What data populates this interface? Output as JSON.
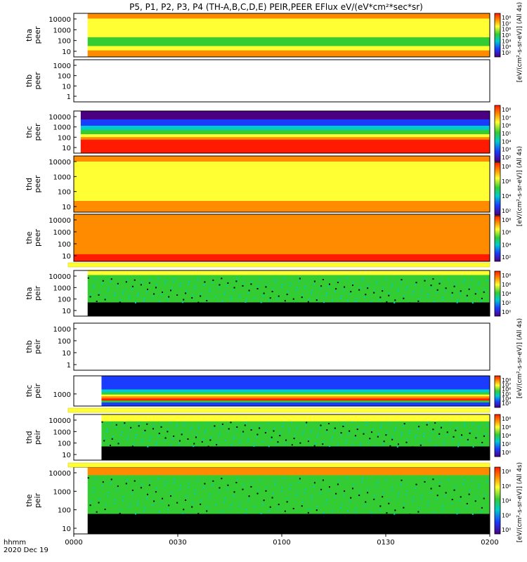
{
  "title": "P5, P1, P2, P3, P4 (TH-A,B,C,D,E) PEIR,PEER EFlux eV/(eV*cm²*sec*sr)",
  "time_axis": {
    "label_line1": "hhmm",
    "label_line2": "2020 Dec 19",
    "ticks": [
      "0000",
      "0030",
      "0100",
      "0130",
      "0200"
    ],
    "start": "0000",
    "end": "0200"
  },
  "colorbar_labels": {
    "cb1": "[eV/(cm²-s-sr-eV)] (All 4s)",
    "cb2": "[eV/(cm²-s-sr-eV)] (All 4s)",
    "cb3": "[eV/(cm²-s-sr-eV)] (All 4s)",
    "cb4": "[eV/(cm²-s-sr-eV)] (All 4s)"
  },
  "colors": {
    "dark_red": "#8b0000",
    "red": "#ff1a00",
    "orange": "#ff8c00",
    "yellow": "#ffff33",
    "green": "#33cc33",
    "cyan": "#00cccc",
    "blue": "#1a3cff",
    "purple": "#4b0082",
    "black": "#000000"
  },
  "chart_data": [
    {
      "type": "heatmap",
      "probe": "tha",
      "product": "peer",
      "ylabel1": "tha",
      "ylabel2": "peer",
      "yticks": [
        "10000",
        "1000",
        "100",
        "10"
      ],
      "ylog": true,
      "yrange_eV": [
        5,
        25000
      ],
      "data_start": "0004",
      "colorbar": {
        "ticks": [
          "10⁸",
          "10⁷",
          "10⁶",
          "10⁵",
          "10⁴",
          "10³",
          "10²"
        ]
      },
      "bands": [
        [
          "orange",
          0,
          0.12
        ],
        [
          "yellow",
          0.12,
          0.3
        ],
        [
          "yellow",
          0.3,
          0.55
        ],
        [
          "green",
          0.55,
          0.75
        ],
        [
          "yellow",
          0.75,
          0.85
        ],
        [
          "orange",
          0.85,
          1.0
        ]
      ]
    },
    {
      "type": "heatmap",
      "probe": "thb",
      "product": "peer",
      "ylabel1": "thb",
      "ylabel2": "peer",
      "yticks": [
        "1000",
        "100",
        "10",
        "1"
      ],
      "ylog": true,
      "yrange_eV": [
        0.5,
        2000
      ],
      "data_start": null,
      "colorbar": null,
      "bands": []
    },
    {
      "type": "heatmap",
      "probe": "thc",
      "product": "peer",
      "ylabel1": "thc",
      "ylabel2": "peer",
      "yticks": [
        "10000",
        "1000",
        "100",
        "10"
      ],
      "ylog": true,
      "yrange_eV": [
        5,
        25000
      ],
      "data_start": "0002",
      "colorbar": {
        "ticks": [
          "10⁸",
          "10⁷",
          "10⁶",
          "10⁵",
          "10⁴",
          "10³",
          "10²"
        ]
      },
      "bands": [
        [
          "purple",
          0,
          0.2
        ],
        [
          "blue",
          0.2,
          0.35
        ],
        [
          "cyan",
          0.35,
          0.45
        ],
        [
          "green",
          0.45,
          0.55
        ],
        [
          "yellow",
          0.55,
          0.62
        ],
        [
          "orange",
          0.62,
          0.68
        ],
        [
          "red",
          0.68,
          1.0
        ]
      ]
    },
    {
      "type": "heatmap",
      "probe": "thd",
      "product": "peer",
      "ylabel1": "thd",
      "ylabel2": "peer",
      "yticks": [
        "10000",
        "1000",
        "100",
        "10"
      ],
      "ylog": true,
      "yrange_eV": [
        5,
        25000
      ],
      "data_start": "0000",
      "colorbar": {
        "ticks": [
          "10⁸",
          "10⁶",
          "10⁴",
          "10²"
        ]
      },
      "bands": [
        [
          "orange",
          0,
          0.1
        ],
        [
          "yellow",
          0.1,
          0.4
        ],
        [
          "yellow",
          0.4,
          0.8
        ],
        [
          "orange",
          0.8,
          1.0
        ]
      ]
    },
    {
      "type": "heatmap",
      "probe": "the",
      "product": "peer",
      "ylabel1": "the",
      "ylabel2": "peer",
      "yticks": [
        "10000",
        "1000",
        "100",
        "10"
      ],
      "ylog": true,
      "yrange_eV": [
        5,
        25000
      ],
      "data_start": "0000",
      "colorbar": {
        "ticks": [
          "10⁸",
          "10⁶",
          "10⁴",
          "10²"
        ]
      },
      "bands": [
        [
          "orange",
          0,
          0.55
        ],
        [
          "orange",
          0.55,
          0.85
        ],
        [
          "red",
          0.85,
          1.0
        ]
      ]
    },
    {
      "type": "heatmap",
      "probe": "tha",
      "product": "peir",
      "ylabel1": "tha",
      "ylabel2": "peir",
      "yticks": [
        "10000",
        "1000",
        "100",
        "10"
      ],
      "ylog": true,
      "yrange_eV": [
        5,
        25000
      ],
      "data_start": "0004",
      "colorbar": {
        "ticks": [
          "10⁸",
          "10⁶",
          "10⁴",
          "10²",
          "10⁰"
        ]
      },
      "bands": [
        [
          "yellow",
          0,
          0.1
        ],
        [
          "green",
          0.1,
          0.7
        ],
        [
          "black",
          0.7,
          1.0
        ]
      ]
    },
    {
      "type": "heatmap",
      "probe": "thb",
      "product": "peir",
      "ylabel1": "thb",
      "ylabel2": "peir",
      "yticks": [
        "1000",
        "100",
        "10",
        "1"
      ],
      "ylog": true,
      "yrange_eV": [
        0.5,
        2000
      ],
      "data_start": null,
      "colorbar": null,
      "bands": []
    },
    {
      "type": "heatmap",
      "probe": "thc",
      "product": "peir",
      "ylabel1": "thc",
      "ylabel2": "peir",
      "yticks": [
        "1000"
      ],
      "ylog": true,
      "yrange_eV": [
        200,
        30000
      ],
      "data_start": "0008",
      "colorbar": {
        "ticks": [
          "10⁸",
          "10⁷",
          "10⁶",
          "10⁵",
          "10⁴",
          "10³"
        ]
      },
      "bands": [
        [
          "blue",
          0,
          0.45
        ],
        [
          "cyan",
          0.45,
          0.55
        ],
        [
          "green",
          0.55,
          0.62
        ],
        [
          "yellow",
          0.62,
          0.68
        ],
        [
          "orange",
          0.68,
          0.75
        ],
        [
          "red",
          0.75,
          0.82
        ],
        [
          "green",
          0.82,
          0.88
        ],
        [
          "blue",
          0.88,
          1.0
        ]
      ]
    },
    {
      "type": "heatmap",
      "probe": "thd",
      "product": "peir",
      "ylabel1": "thd",
      "ylabel2": "peir",
      "yticks": [
        "10000",
        "1000",
        "100",
        "10"
      ],
      "ylog": true,
      "yrange_eV": [
        5,
        25000
      ],
      "data_start": "0008",
      "colorbar": {
        "ticks": [
          "10⁸",
          "10⁶",
          "10⁴",
          "10²",
          "10⁰"
        ]
      },
      "bands": [
        [
          "yellow",
          0,
          0.15
        ],
        [
          "green",
          0.15,
          0.7
        ],
        [
          "black",
          0.7,
          1.0
        ]
      ]
    },
    {
      "type": "heatmap",
      "probe": "the",
      "product": "peir",
      "ylabel1": "the",
      "ylabel2": "peir",
      "yticks": [
        "10000",
        "1000",
        "100",
        "10"
      ],
      "ylog": true,
      "yrange_eV": [
        5,
        25000
      ],
      "data_start": "0004",
      "colorbar": {
        "ticks": [
          "10⁸",
          "10⁶",
          "10⁴",
          "10²",
          "10⁰"
        ]
      },
      "bands": [
        [
          "orange",
          0,
          0.12
        ],
        [
          "green",
          0.12,
          0.7
        ],
        [
          "black",
          0.7,
          1.0
        ]
      ]
    }
  ]
}
